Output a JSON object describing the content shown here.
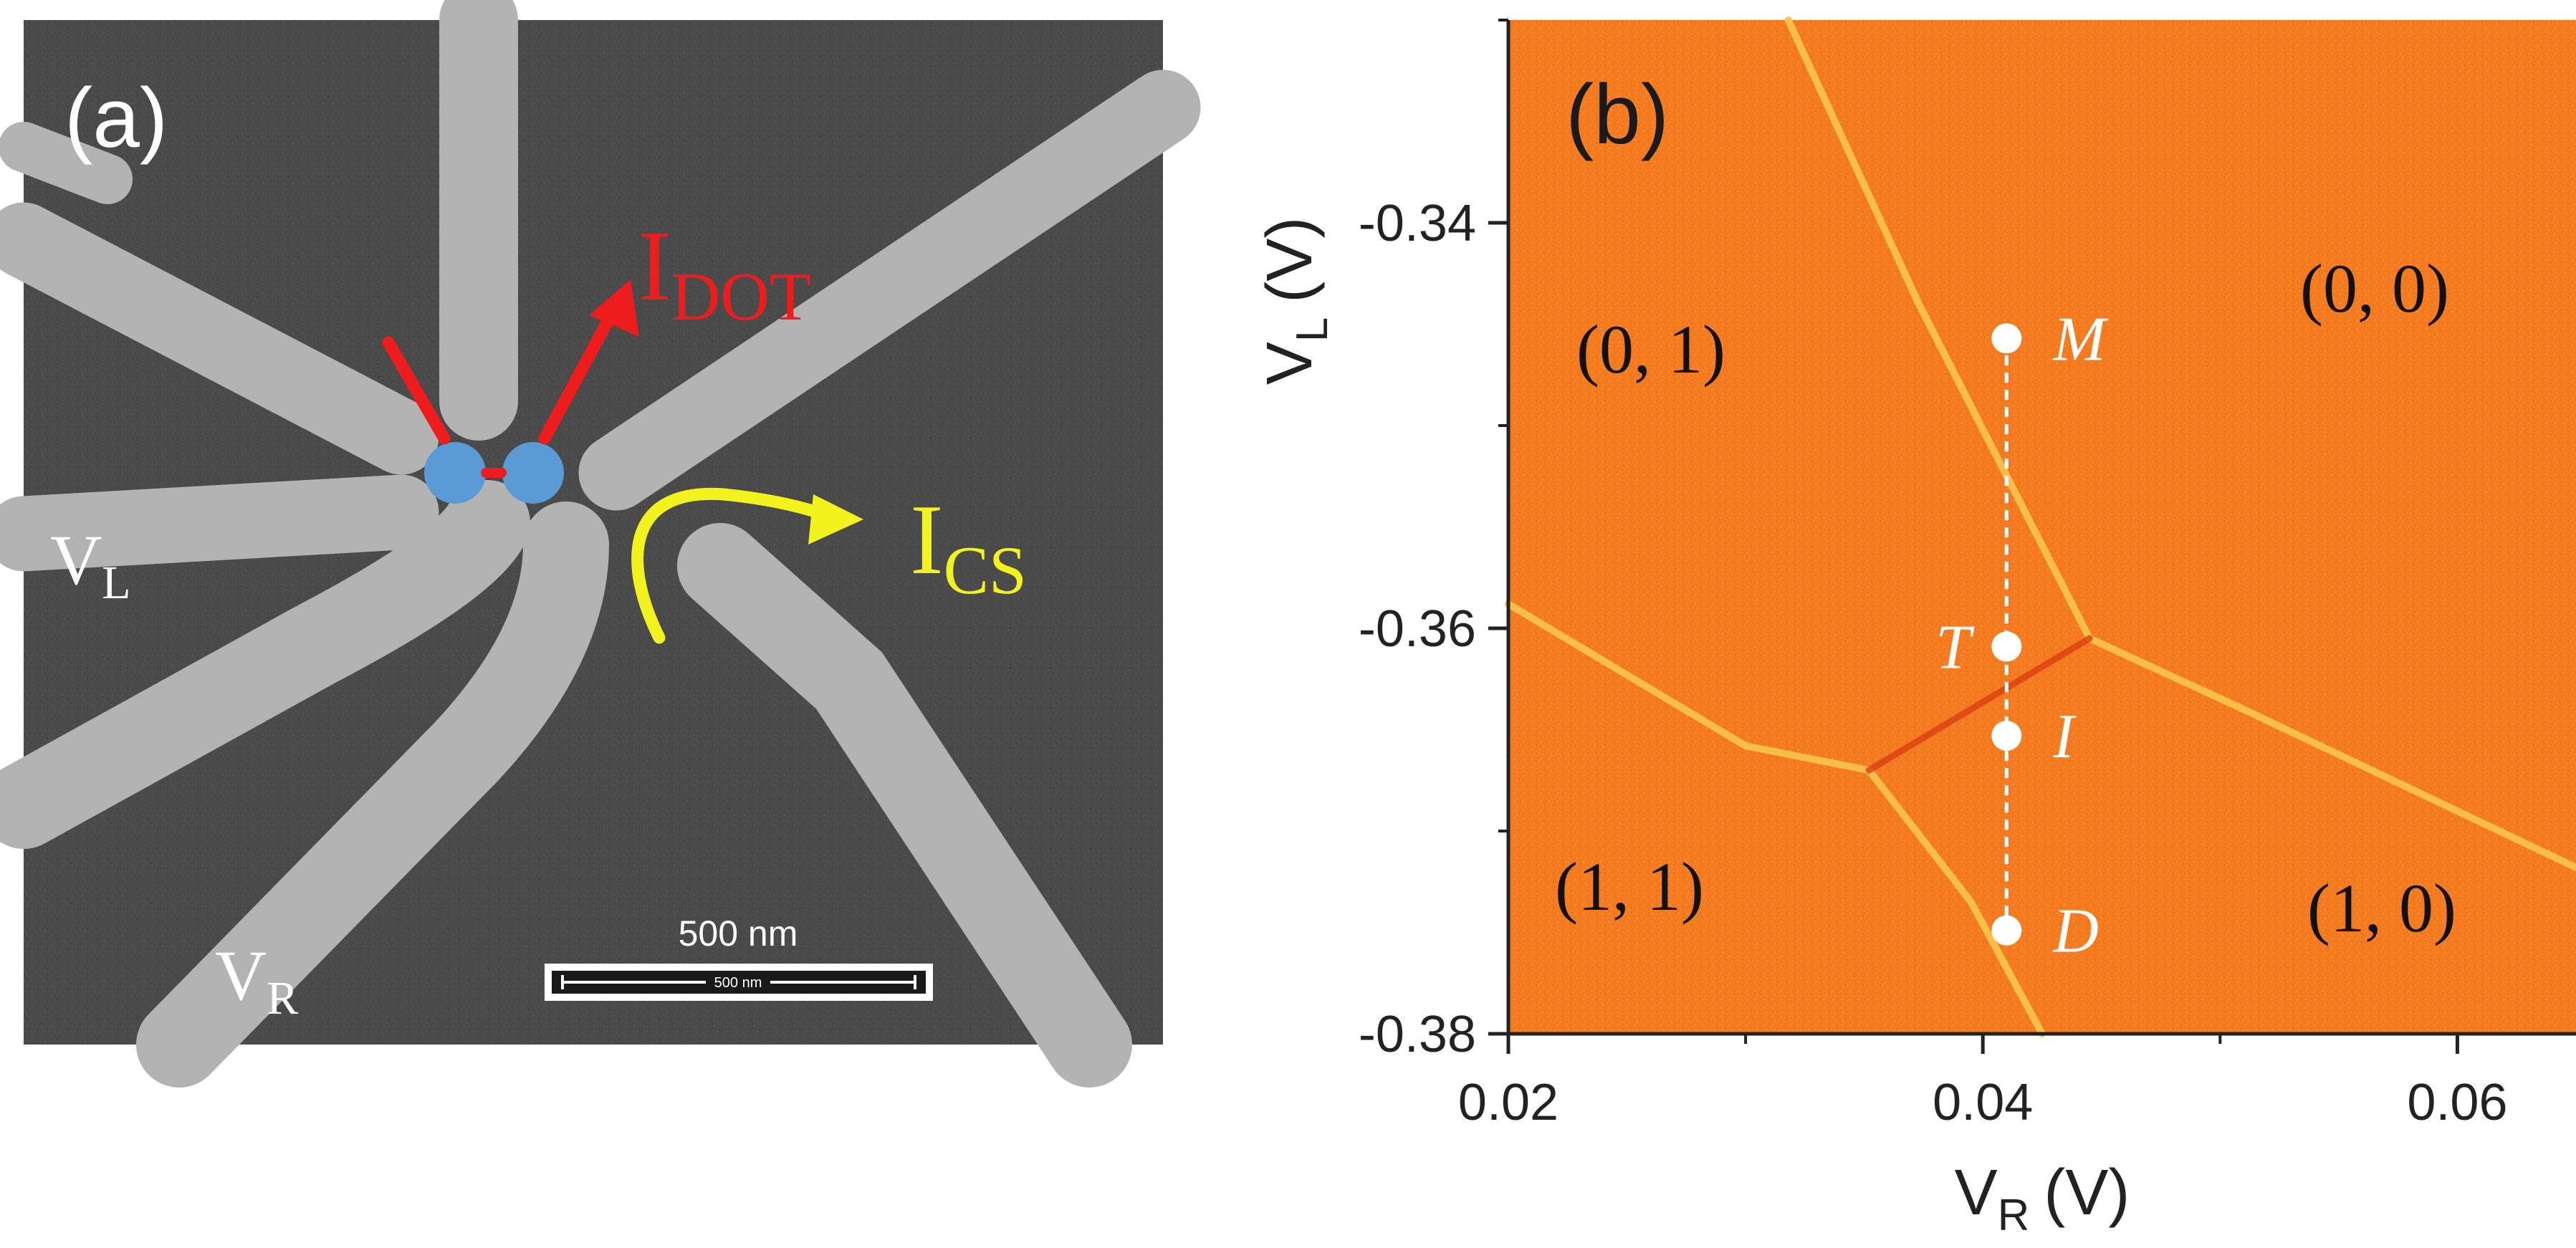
{
  "panel_a": {
    "label": "(a)",
    "idot": {
      "main": "I",
      "sub": "DOT"
    },
    "ics": {
      "main": "I",
      "sub": "CS"
    },
    "vl": {
      "main": "V",
      "sub": "L"
    },
    "vr": {
      "main": "V",
      "sub": "R"
    },
    "scale_bar": {
      "label": "500 nm",
      "inner_label": "500 nm"
    },
    "colors": {
      "background": "#4a4a4a",
      "gate": "#b3b3b3",
      "dot": "#5b9bd5",
      "idot_arrow": "#ee1c1c",
      "ics_arrow": "#f2f21c"
    }
  },
  "panel_b": {
    "label": "(b)",
    "regions": {
      "r01": "(0, 1)",
      "r00": "(0, 0)",
      "r11": "(1, 1)",
      "r10": "(1, 0)"
    },
    "points": [
      {
        "label": "M",
        "vr": 0.041,
        "vl": -0.3457
      },
      {
        "label": "T",
        "vr": 0.041,
        "vl": -0.3609
      },
      {
        "label": "I",
        "vr": 0.041,
        "vl": -0.3653
      },
      {
        "label": "D",
        "vr": 0.041,
        "vl": -0.3749
      }
    ],
    "colors": {
      "map": "#f47b20",
      "transition_line": "#f9c24a",
      "interdot_line": "#d94010",
      "point": "#ffffff"
    }
  },
  "chart_data": {
    "type": "heatmap",
    "title": "",
    "xlabel": {
      "main": "V",
      "sub": "R",
      "unit": "(V)"
    },
    "ylabel": {
      "main": "V",
      "sub": "L",
      "unit": "(V)"
    },
    "xlim": [
      0.02,
      0.065
    ],
    "ylim": [
      -0.38,
      -0.33
    ],
    "x_ticks": [
      {
        "value": 0.02,
        "label": "0.02"
      },
      {
        "value": 0.04,
        "label": "0.04"
      },
      {
        "value": 0.06,
        "label": "0.06"
      }
    ],
    "y_ticks": [
      {
        "value": -0.34,
        "label": "-0.34"
      },
      {
        "value": -0.36,
        "label": "-0.36"
      },
      {
        "value": -0.38,
        "label": "-0.38"
      }
    ],
    "transition_lines": [
      {
        "name": "upper-left-line",
        "points": [
          [
            0.0318,
            -0.33
          ],
          [
            0.0373,
            -0.344
          ],
          [
            0.0445,
            -0.3605
          ]
        ]
      },
      {
        "name": "lower-right-line",
        "points": [
          [
            0.0445,
            -0.3605
          ],
          [
            0.051,
            -0.364
          ],
          [
            0.065,
            -0.3718
          ]
        ]
      },
      {
        "name": "lower-left-line",
        "points": [
          [
            0.02,
            -0.3588
          ],
          [
            0.03,
            -0.3658
          ],
          [
            0.0352,
            -0.367
          ]
        ]
      },
      {
        "name": "bottom-line",
        "points": [
          [
            0.0352,
            -0.367
          ],
          [
            0.0395,
            -0.3735
          ],
          [
            0.0425,
            -0.38
          ]
        ]
      },
      {
        "name": "interdot-line",
        "points": [
          [
            0.0352,
            -0.367
          ],
          [
            0.0445,
            -0.3605
          ]
        ]
      }
    ]
  }
}
